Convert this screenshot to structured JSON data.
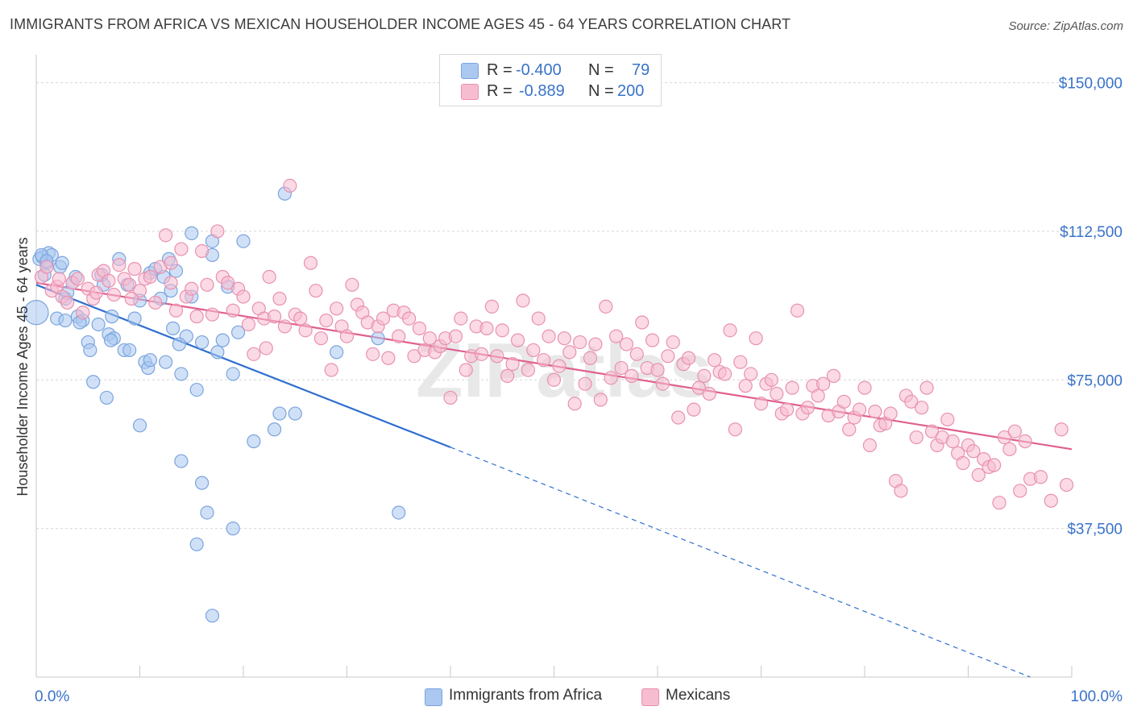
{
  "title": "IMMIGRANTS FROM AFRICA VS MEXICAN HOUSEHOLDER INCOME AGES 45 - 64 YEARS CORRELATION CHART",
  "source": "Source: ZipAtlas.com",
  "watermark": "ZIPatlas",
  "legend": {
    "rows": [
      {
        "r_label": "R = ",
        "r_value": "-0.400",
        "n_label": "N = ",
        "n_value": "79",
        "color": "#aac8f0",
        "border": "#7ba4de"
      },
      {
        "r_label": "R = ",
        "r_value": "-0.889",
        "n_label": "N = ",
        "n_value": "200",
        "color": "#f7bcd0",
        "border": "#e891b0"
      }
    ]
  },
  "bottom_legend": [
    {
      "label": "Immigrants from Africa",
      "color": "#aac8f0",
      "border": "#7ba4de"
    },
    {
      "label": "Mexicans",
      "color": "#f7bcd0",
      "border": "#e891b0"
    }
  ],
  "chart_data": {
    "type": "scatter",
    "title": "IMMIGRANTS FROM AFRICA VS MEXICAN HOUSEHOLDER INCOME AGES 45 - 64 YEARS CORRELATION CHART",
    "xlabel": "",
    "ylabel": "Householder Income Ages 45 - 64 years",
    "xlim": [
      0,
      100
    ],
    "ylim": [
      0,
      155000
    ],
    "x_tick_labels": [
      "0.0%",
      "100.0%"
    ],
    "y_ticks": [
      37500,
      75000,
      112500,
      150000
    ],
    "y_tick_labels": [
      "$37,500",
      "$75,000",
      "$112,500",
      "$150,000"
    ],
    "grid": "horizontal dashed",
    "legend_position": "top-center",
    "series": [
      {
        "name": "Immigrants from Africa",
        "color": "#7ba4de",
        "fill": "#aac8f0",
        "trend": {
          "x0": 0,
          "y0": 99000,
          "x1": 40,
          "y1": 58000,
          "dashed_to_x": 96,
          "dashed_to_y": 0
        },
        "points": [
          [
            0,
            92000
          ],
          [
            0.3,
            105500
          ],
          [
            0.6,
            106000
          ],
          [
            0.8,
            101500
          ],
          [
            1,
            104500
          ],
          [
            1.2,
            107000
          ],
          [
            1.5,
            106500
          ],
          [
            2,
            90500
          ],
          [
            2.3,
            103500
          ],
          [
            2.5,
            104500
          ],
          [
            2.8,
            95500
          ],
          [
            3,
            97000
          ],
          [
            3.5,
            99500
          ],
          [
            3.8,
            101000
          ],
          [
            4,
            91000
          ],
          [
            4.5,
            90000
          ],
          [
            5,
            84500
          ],
          [
            5.2,
            82500
          ],
          [
            5.5,
            74500
          ],
          [
            6,
            89000
          ],
          [
            6.3,
            101500
          ],
          [
            6.5,
            99000
          ],
          [
            6.8,
            70500
          ],
          [
            7,
            86500
          ],
          [
            7.3,
            91000
          ],
          [
            7.5,
            85500
          ],
          [
            8,
            105500
          ],
          [
            8.5,
            82500
          ],
          [
            8.8,
            99000
          ],
          [
            9,
            82500
          ],
          [
            9.5,
            90500
          ],
          [
            10,
            95000
          ],
          [
            10,
            63500
          ],
          [
            10.5,
            79500
          ],
          [
            10.8,
            78000
          ],
          [
            11,
            102000
          ],
          [
            11.5,
            103000
          ],
          [
            12,
            95500
          ],
          [
            12.3,
            101000
          ],
          [
            12.5,
            79500
          ],
          [
            12.8,
            105500
          ],
          [
            13,
            97500
          ],
          [
            13.2,
            88000
          ],
          [
            13.5,
            102500
          ],
          [
            14,
            76500
          ],
          [
            14,
            54500
          ],
          [
            14.5,
            86000
          ],
          [
            15,
            112000
          ],
          [
            15,
            96000
          ],
          [
            15.5,
            72500
          ],
          [
            16,
            84500
          ],
          [
            16,
            49000
          ],
          [
            16.5,
            41500
          ],
          [
            17,
            110000
          ],
          [
            17,
            106500
          ],
          [
            17.5,
            82000
          ],
          [
            18,
            85000
          ],
          [
            18.5,
            98500
          ],
          [
            19,
            76500
          ],
          [
            19,
            37500
          ],
          [
            19.5,
            87000
          ],
          [
            20,
            110000
          ],
          [
            21,
            59500
          ],
          [
            23,
            62500
          ],
          [
            23.5,
            66500
          ],
          [
            24,
            122000
          ],
          [
            25,
            66500
          ],
          [
            29,
            82000
          ],
          [
            33,
            85500
          ],
          [
            35,
            41500
          ],
          [
            15.5,
            33500
          ],
          [
            17,
            15500
          ],
          [
            0.5,
            106500
          ],
          [
            1,
            105000
          ],
          [
            2.8,
            90000
          ],
          [
            4.2,
            89500
          ],
          [
            7.2,
            85000
          ],
          [
            11,
            80000
          ],
          [
            13.8,
            84000
          ]
        ]
      },
      {
        "name": "Mexicans",
        "color": "#e891b0",
        "fill": "#f7bcd0",
        "trend": {
          "x0": 0,
          "y0": 99500,
          "x1": 100,
          "y1": 57500
        },
        "points": [
          [
            0.5,
            101000
          ],
          [
            1,
            103500
          ],
          [
            1.5,
            97500
          ],
          [
            2,
            98500
          ],
          [
            2.5,
            96000
          ],
          [
            3,
            94500
          ],
          [
            3.5,
            99500
          ],
          [
            4,
            100500
          ],
          [
            4.5,
            92000
          ],
          [
            5,
            98000
          ],
          [
            5.5,
            95500
          ],
          [
            6,
            101500
          ],
          [
            6.5,
            102500
          ],
          [
            7,
            100000
          ],
          [
            7.5,
            96500
          ],
          [
            8,
            104000
          ],
          [
            8.5,
            100500
          ],
          [
            9,
            99000
          ],
          [
            9.5,
            103000
          ],
          [
            10,
            97500
          ],
          [
            10.5,
            100500
          ],
          [
            11,
            101000
          ],
          [
            11.5,
            94500
          ],
          [
            12,
            103500
          ],
          [
            12.5,
            111500
          ],
          [
            13,
            99500
          ],
          [
            13.5,
            92500
          ],
          [
            14,
            108000
          ],
          [
            14.5,
            96000
          ],
          [
            15,
            98000
          ],
          [
            15.5,
            91000
          ],
          [
            16,
            107500
          ],
          [
            16.5,
            99000
          ],
          [
            17,
            91500
          ],
          [
            17.5,
            112500
          ],
          [
            18,
            101000
          ],
          [
            18.5,
            99500
          ],
          [
            19,
            92500
          ],
          [
            19.5,
            98000
          ],
          [
            20,
            96000
          ],
          [
            20.5,
            89000
          ],
          [
            21,
            81500
          ],
          [
            21.5,
            93000
          ],
          [
            22,
            90500
          ],
          [
            22.5,
            101000
          ],
          [
            23,
            91000
          ],
          [
            23.5,
            95500
          ],
          [
            24,
            88500
          ],
          [
            24.5,
            124000
          ],
          [
            25,
            91500
          ],
          [
            25.5,
            90500
          ],
          [
            26,
            87500
          ],
          [
            26.5,
            104500
          ],
          [
            27,
            97500
          ],
          [
            27.5,
            85500
          ],
          [
            28,
            90000
          ],
          [
            28.5,
            77500
          ],
          [
            29,
            93000
          ],
          [
            29.5,
            88500
          ],
          [
            30,
            86000
          ],
          [
            30.5,
            99000
          ],
          [
            31,
            94000
          ],
          [
            31.5,
            92000
          ],
          [
            32,
            89500
          ],
          [
            32.5,
            81500
          ],
          [
            33,
            88500
          ],
          [
            33.5,
            90500
          ],
          [
            34,
            80500
          ],
          [
            34.5,
            92500
          ],
          [
            35,
            86000
          ],
          [
            35.5,
            92000
          ],
          [
            36,
            90500
          ],
          [
            36.5,
            81000
          ],
          [
            37,
            88000
          ],
          [
            37.5,
            82500
          ],
          [
            38,
            85500
          ],
          [
            38.5,
            82000
          ],
          [
            39,
            83500
          ],
          [
            39.5,
            85500
          ],
          [
            40,
            70500
          ],
          [
            40.5,
            86000
          ],
          [
            41,
            90500
          ],
          [
            41.5,
            77500
          ],
          [
            42,
            81000
          ],
          [
            42.5,
            88500
          ],
          [
            43,
            81500
          ],
          [
            43.5,
            88000
          ],
          [
            44,
            93500
          ],
          [
            44.5,
            81000
          ],
          [
            45,
            87500
          ],
          [
            45.5,
            76000
          ],
          [
            46,
            79000
          ],
          [
            46.5,
            85000
          ],
          [
            47,
            95000
          ],
          [
            47.5,
            77500
          ],
          [
            48,
            82500
          ],
          [
            48.5,
            90500
          ],
          [
            49,
            80000
          ],
          [
            49.5,
            86000
          ],
          [
            50,
            75000
          ],
          [
            50.5,
            78500
          ],
          [
            51,
            85500
          ],
          [
            51.5,
            82000
          ],
          [
            52,
            69000
          ],
          [
            52.5,
            84500
          ],
          [
            53,
            74000
          ],
          [
            53.5,
            80500
          ],
          [
            54,
            84000
          ],
          [
            54.5,
            70000
          ],
          [
            55,
            93500
          ],
          [
            55.5,
            75500
          ],
          [
            56,
            86000
          ],
          [
            56.5,
            78000
          ],
          [
            57,
            84000
          ],
          [
            57.5,
            76000
          ],
          [
            58,
            81500
          ],
          [
            58.5,
            89500
          ],
          [
            59,
            78000
          ],
          [
            59.5,
            85000
          ],
          [
            60,
            77500
          ],
          [
            60.5,
            74000
          ],
          [
            61,
            81000
          ],
          [
            61.5,
            84500
          ],
          [
            62,
            65500
          ],
          [
            62.5,
            79000
          ],
          [
            63,
            80500
          ],
          [
            63.5,
            67500
          ],
          [
            64,
            73000
          ],
          [
            64.5,
            76000
          ],
          [
            65,
            71500
          ],
          [
            65.5,
            80000
          ],
          [
            66,
            77000
          ],
          [
            66.5,
            76500
          ],
          [
            67,
            87500
          ],
          [
            67.5,
            62500
          ],
          [
            68,
            79500
          ],
          [
            68.5,
            73500
          ],
          [
            69,
            76500
          ],
          [
            69.5,
            85500
          ],
          [
            70,
            69000
          ],
          [
            70.5,
            74000
          ],
          [
            71,
            75000
          ],
          [
            71.5,
            71500
          ],
          [
            72,
            66500
          ],
          [
            72.5,
            67500
          ],
          [
            73,
            73000
          ],
          [
            73.5,
            92500
          ],
          [
            74,
            66500
          ],
          [
            74.5,
            68000
          ],
          [
            75,
            73500
          ],
          [
            75.5,
            71000
          ],
          [
            76,
            74000
          ],
          [
            76.5,
            66000
          ],
          [
            77,
            76000
          ],
          [
            77.5,
            67000
          ],
          [
            78,
            69500
          ],
          [
            78.5,
            62500
          ],
          [
            79,
            65500
          ],
          [
            79.5,
            67500
          ],
          [
            80,
            73000
          ],
          [
            80.5,
            58500
          ],
          [
            81,
            67000
          ],
          [
            81.5,
            63500
          ],
          [
            82,
            64000
          ],
          [
            82.5,
            66500
          ],
          [
            83,
            49500
          ],
          [
            83.5,
            47000
          ],
          [
            84,
            71000
          ],
          [
            84.5,
            69500
          ],
          [
            85,
            60500
          ],
          [
            85.5,
            68000
          ],
          [
            86,
            73000
          ],
          [
            86.5,
            62000
          ],
          [
            87,
            58500
          ],
          [
            87.5,
            60500
          ],
          [
            88,
            65000
          ],
          [
            88.5,
            59500
          ],
          [
            89,
            56500
          ],
          [
            89.5,
            54000
          ],
          [
            90,
            58500
          ],
          [
            90.5,
            57000
          ],
          [
            91,
            51000
          ],
          [
            91.5,
            55000
          ],
          [
            92,
            53000
          ],
          [
            92.5,
            53500
          ],
          [
            93,
            44000
          ],
          [
            93.5,
            60500
          ],
          [
            94,
            57500
          ],
          [
            94.5,
            62000
          ],
          [
            95,
            47000
          ],
          [
            95.5,
            59500
          ],
          [
            96,
            50000
          ],
          [
            97,
            50500
          ],
          [
            98,
            44500
          ],
          [
            99,
            62500
          ],
          [
            99.5,
            48500
          ],
          [
            2.2,
            100500
          ],
          [
            5.8,
            97000
          ],
          [
            13,
            104500
          ],
          [
            9.2,
            95500
          ],
          [
            22.2,
            83000
          ]
        ]
      }
    ]
  }
}
